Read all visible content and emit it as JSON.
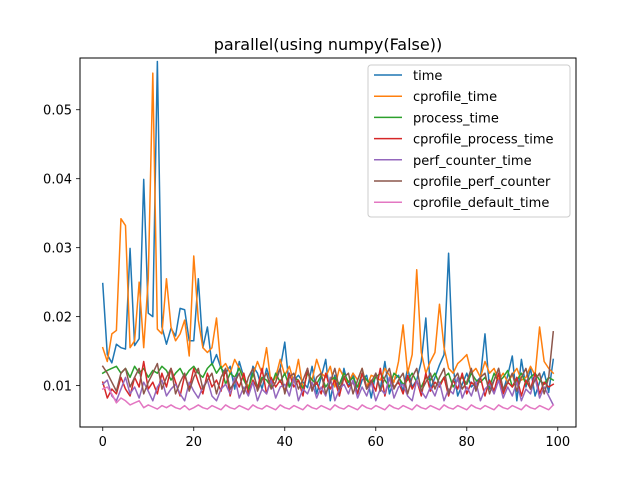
{
  "chart_data": {
    "type": "line",
    "title": "parallel(using numpy(False))",
    "xlabel": "",
    "ylabel": "",
    "xlim": [
      -5,
      104
    ],
    "ylim": [
      0.004,
      0.0575
    ],
    "x_ticks": [
      0,
      20,
      40,
      60,
      80,
      100
    ],
    "y_ticks": [
      0.01,
      0.02,
      0.03,
      0.04,
      0.05
    ],
    "grid": false,
    "legend_position": "top-right",
    "series": [
      {
        "name": "time",
        "color": "#1f77b4",
        "values": [
          0.0248,
          0.0145,
          0.0133,
          0.016,
          0.0155,
          0.0153,
          0.0299,
          0.0158,
          0.0168,
          0.0399,
          0.0205,
          0.02,
          0.057,
          0.0185,
          0.016,
          0.0183,
          0.0172,
          0.0212,
          0.021,
          0.0165,
          0.0165,
          0.0255,
          0.0155,
          0.0185,
          0.013,
          0.0145,
          0.0125,
          0.0118,
          0.0128,
          0.0095,
          0.0135,
          0.0112,
          0.0092,
          0.0128,
          0.0118,
          0.0095,
          0.0125,
          0.0105,
          0.0112,
          0.0125,
          0.0163,
          0.0098,
          0.0108,
          0.0115,
          0.0105,
          0.0097,
          0.0128,
          0.0088,
          0.0112,
          0.0138,
          0.0078,
          0.0115,
          0.0085,
          0.0125,
          0.0098,
          0.0118,
          0.0088,
          0.0108,
          0.0115,
          0.0082,
          0.0118,
          0.0095,
          0.0135,
          0.0088,
          0.0108,
          0.0115,
          0.0092,
          0.0125,
          0.0098,
          0.0108,
          0.0135,
          0.0198,
          0.0095,
          0.0112,
          0.013,
          0.0145,
          0.0292,
          0.0125,
          0.0085,
          0.0102,
          0.0118,
          0.0098,
          0.0105,
          0.0112,
          0.0175,
          0.0095,
          0.0108,
          0.0125,
          0.0092,
          0.0115,
          0.0143,
          0.0078,
          0.0138,
          0.0098,
          0.0125,
          0.0085,
          0.0105,
          0.012,
          0.009,
          0.0138
        ]
      },
      {
        "name": "cprofile_time",
        "color": "#ff7f0e",
        "values": [
          0.0155,
          0.0135,
          0.0175,
          0.018,
          0.0342,
          0.0332,
          0.0155,
          0.0165,
          0.025,
          0.0155,
          0.0255,
          0.0553,
          0.0182,
          0.0175,
          0.0255,
          0.0185,
          0.0165,
          0.0175,
          0.0195,
          0.0143,
          0.0288,
          0.0195,
          0.0155,
          0.0148,
          0.0155,
          0.0198,
          0.0125,
          0.0132,
          0.0118,
          0.0138,
          0.0125,
          0.0112,
          0.0098,
          0.0115,
          0.0135,
          0.0118,
          0.0155,
          0.0102,
          0.0112,
          0.0138,
          0.0115,
          0.0128,
          0.0105,
          0.0138,
          0.0095,
          0.0118,
          0.0108,
          0.0138,
          0.0118,
          0.0112,
          0.0128,
          0.0098,
          0.0125,
          0.0112,
          0.0105,
          0.0118,
          0.0108,
          0.0125,
          0.0098,
          0.0115,
          0.0112,
          0.0108,
          0.0125,
          0.0115,
          0.0105,
          0.0135,
          0.0188,
          0.0118,
          0.0145,
          0.0268,
          0.0148,
          0.0118,
          0.0135,
          0.0148,
          0.0218,
          0.0155,
          0.0125,
          0.0118,
          0.0132,
          0.0138,
          0.0145,
          0.0118,
          0.0125,
          0.0112,
          0.0135,
          0.0118,
          0.0125,
          0.0108,
          0.0118,
          0.0105,
          0.0115,
          0.0125,
          0.0108,
          0.0112,
          0.0128,
          0.0115,
          0.0185,
          0.0135,
          0.0125,
          0.0118
        ]
      },
      {
        "name": "process_time",
        "color": "#2ca02c",
        "values": [
          0.0118,
          0.0122,
          0.0125,
          0.0128,
          0.0118,
          0.0125,
          0.0112,
          0.0128,
          0.0118,
          0.0125,
          0.0112,
          0.0122,
          0.0118,
          0.0128,
          0.0122,
          0.0108,
          0.0118,
          0.0125,
          0.0112,
          0.0122,
          0.0128,
          0.0118,
          0.0112,
          0.0125,
          0.0132,
          0.0118,
          0.0128,
          0.0102,
          0.0118,
          0.0112,
          0.0125,
          0.0108,
          0.0095,
          0.0118,
          0.0098,
          0.0112,
          0.0108,
          0.0098,
          0.0118,
          0.0105,
          0.0118,
          0.0098,
          0.0112,
          0.0108,
          0.0095,
          0.0118,
          0.0108,
          0.0102,
          0.0115,
          0.0098,
          0.0108,
          0.0112,
          0.0102,
          0.0118,
          0.0105,
          0.0112,
          0.0098,
          0.0118,
          0.0108,
          0.0102,
          0.0112,
          0.0118,
          0.0108,
          0.0098,
          0.0118,
          0.0112,
          0.0102,
          0.0108,
          0.0118,
          0.0105,
          0.0098,
          0.0112,
          0.0108,
          0.0118,
          0.0102,
          0.0112,
          0.0118,
          0.0098,
          0.0108,
          0.0112,
          0.0102,
          0.0118,
          0.0108,
          0.0105,
          0.0112,
          0.0098,
          0.0118,
          0.0105,
          0.0112,
          0.0122,
          0.0098,
          0.0108,
          0.0118,
          0.0102,
          0.0112,
          0.0118,
          0.0108,
          0.0102,
          0.0112,
          0.0108
        ]
      },
      {
        "name": "cprofile_process_time",
        "color": "#d62728",
        "values": [
          0.0105,
          0.0082,
          0.0095,
          0.0088,
          0.0112,
          0.0095,
          0.0085,
          0.0112,
          0.0098,
          0.0135,
          0.0095,
          0.0105,
          0.0088,
          0.0118,
          0.0098,
          0.0125,
          0.0105,
          0.0085,
          0.0115,
          0.0095,
          0.0125,
          0.0105,
          0.0088,
          0.0118,
          0.0098,
          0.0108,
          0.0092,
          0.0125,
          0.0085,
          0.0112,
          0.0098,
          0.0118,
          0.0088,
          0.0108,
          0.0095,
          0.0125,
          0.0088,
          0.0112,
          0.0098,
          0.0108,
          0.0092,
          0.0118,
          0.0098,
          0.0108,
          0.0085,
          0.0125,
          0.0095,
          0.0105,
          0.0088,
          0.0118,
          0.0095,
          0.0108,
          0.0085,
          0.0112,
          0.0098,
          0.0105,
          0.0088,
          0.0118,
          0.0095,
          0.0108,
          0.0092,
          0.0125,
          0.0085,
          0.0112,
          0.0098,
          0.0105,
          0.0088,
          0.0115,
          0.0095,
          0.0108,
          0.0085,
          0.0118,
          0.0092,
          0.0105,
          0.0098,
          0.0112,
          0.0085,
          0.0108,
          0.0095,
          0.0118,
          0.0088,
          0.0105,
          0.0098,
          0.0112,
          0.0085,
          0.0108,
          0.0092,
          0.0118,
          0.0088,
          0.0105,
          0.0098,
          0.0112,
          0.0085,
          0.0108,
          0.0095,
          0.0118,
          0.0088,
          0.0105,
          0.0098,
          0.0102
        ]
      },
      {
        "name": "perf_counter_time",
        "color": "#9467bd",
        "values": [
          0.0102,
          0.0108,
          0.0085,
          0.0078,
          0.0095,
          0.0112,
          0.0088,
          0.0098,
          0.0082,
          0.0105,
          0.0092,
          0.0078,
          0.0098,
          0.0108,
          0.0085,
          0.0095,
          0.0102,
          0.0088,
          0.0078,
          0.0105,
          0.0092,
          0.0082,
          0.0098,
          0.0108,
          0.0085,
          0.0078,
          0.0095,
          0.0102,
          0.0088,
          0.0112,
          0.0082,
          0.0098,
          0.0085,
          0.0105,
          0.0078,
          0.0095,
          0.0088,
          0.0108,
          0.0082,
          0.0098,
          0.0102,
          0.0085,
          0.0112,
          0.0078,
          0.0095,
          0.0088,
          0.0105,
          0.0082,
          0.0098,
          0.0085,
          0.0112,
          0.0078,
          0.0095,
          0.0102,
          0.0088,
          0.0108,
          0.0082,
          0.0098,
          0.0085,
          0.0105,
          0.0078,
          0.0095,
          0.0088,
          0.0112,
          0.0082,
          0.0098,
          0.0102,
          0.0085,
          0.0078,
          0.0108,
          0.0092,
          0.0082,
          0.0098,
          0.0085,
          0.0105,
          0.0078,
          0.0095,
          0.0088,
          0.0112,
          0.0082,
          0.0098,
          0.0085,
          0.0105,
          0.0078,
          0.0095,
          0.0102,
          0.0088,
          0.0108,
          0.0082,
          0.0098,
          0.0085,
          0.0105,
          0.0078,
          0.0095,
          0.0088,
          0.0112,
          0.0082,
          0.0098,
          0.0085,
          0.0072
        ]
      },
      {
        "name": "cprofile_perf_counter",
        "color": "#8c564b",
        "values": [
          0.0128,
          0.0118,
          0.0105,
          0.0092,
          0.0118,
          0.0125,
          0.0098,
          0.0112,
          0.0125,
          0.0088,
          0.0105,
          0.0118,
          0.0132,
          0.0095,
          0.0112,
          0.0125,
          0.0088,
          0.0105,
          0.0118,
          0.0092,
          0.0112,
          0.0125,
          0.0095,
          0.0108,
          0.0118,
          0.0088,
          0.0112,
          0.0125,
          0.0095,
          0.0105,
          0.0118,
          0.0088,
          0.0112,
          0.0125,
          0.0092,
          0.0108,
          0.0118,
          0.0095,
          0.0105,
          0.0125,
          0.0088,
          0.0112,
          0.0118,
          0.0095,
          0.0108,
          0.0125,
          0.0092,
          0.0112,
          0.0118,
          0.0088,
          0.0105,
          0.0125,
          0.0095,
          0.0112,
          0.0118,
          0.0088,
          0.0108,
          0.0125,
          0.0095,
          0.0105,
          0.0118,
          0.0092,
          0.0112,
          0.0125,
          0.0095,
          0.0108,
          0.0118,
          0.0088,
          0.0112,
          0.0125,
          0.0092,
          0.0105,
          0.0118,
          0.0095,
          0.0112,
          0.0125,
          0.0088,
          0.0108,
          0.0118,
          0.0095,
          0.0105,
          0.0125,
          0.0092,
          0.0112,
          0.0118,
          0.0088,
          0.0108,
          0.0125,
          0.0095,
          0.0105,
          0.0118,
          0.0092,
          0.0112,
          0.0125,
          0.0095,
          0.0108,
          0.0118,
          0.0088,
          0.0112,
          0.0178
        ]
      },
      {
        "name": "cprofile_default_time",
        "color": "#e377c2",
        "values": [
          0.0095,
          0.0098,
          0.0088,
          0.0075,
          0.0082,
          0.0078,
          0.0072,
          0.0075,
          0.0078,
          0.0068,
          0.0072,
          0.0069,
          0.0066,
          0.0071,
          0.0068,
          0.0072,
          0.0068,
          0.0066,
          0.0071,
          0.0065,
          0.0068,
          0.0072,
          0.0068,
          0.0066,
          0.0071,
          0.0068,
          0.0065,
          0.0072,
          0.0068,
          0.0066,
          0.0071,
          0.0068,
          0.0065,
          0.0072,
          0.0068,
          0.0066,
          0.0071,
          0.0068,
          0.0065,
          0.0072,
          0.0068,
          0.0066,
          0.0071,
          0.0068,
          0.0065,
          0.0072,
          0.0068,
          0.0066,
          0.0071,
          0.0068,
          0.0065,
          0.0072,
          0.0068,
          0.0066,
          0.0071,
          0.0068,
          0.0065,
          0.0072,
          0.0068,
          0.0066,
          0.0071,
          0.0068,
          0.0065,
          0.0072,
          0.0068,
          0.0066,
          0.0071,
          0.0068,
          0.0065,
          0.0072,
          0.0068,
          0.0066,
          0.0071,
          0.0068,
          0.0065,
          0.0072,
          0.0068,
          0.0066,
          0.0071,
          0.0068,
          0.0065,
          0.0072,
          0.0068,
          0.0066,
          0.0071,
          0.0068,
          0.0065,
          0.0072,
          0.0068,
          0.0066,
          0.0071,
          0.0068,
          0.0065,
          0.0072,
          0.0068,
          0.0066,
          0.0071,
          0.0068,
          0.0065,
          0.0072
        ]
      }
    ]
  }
}
